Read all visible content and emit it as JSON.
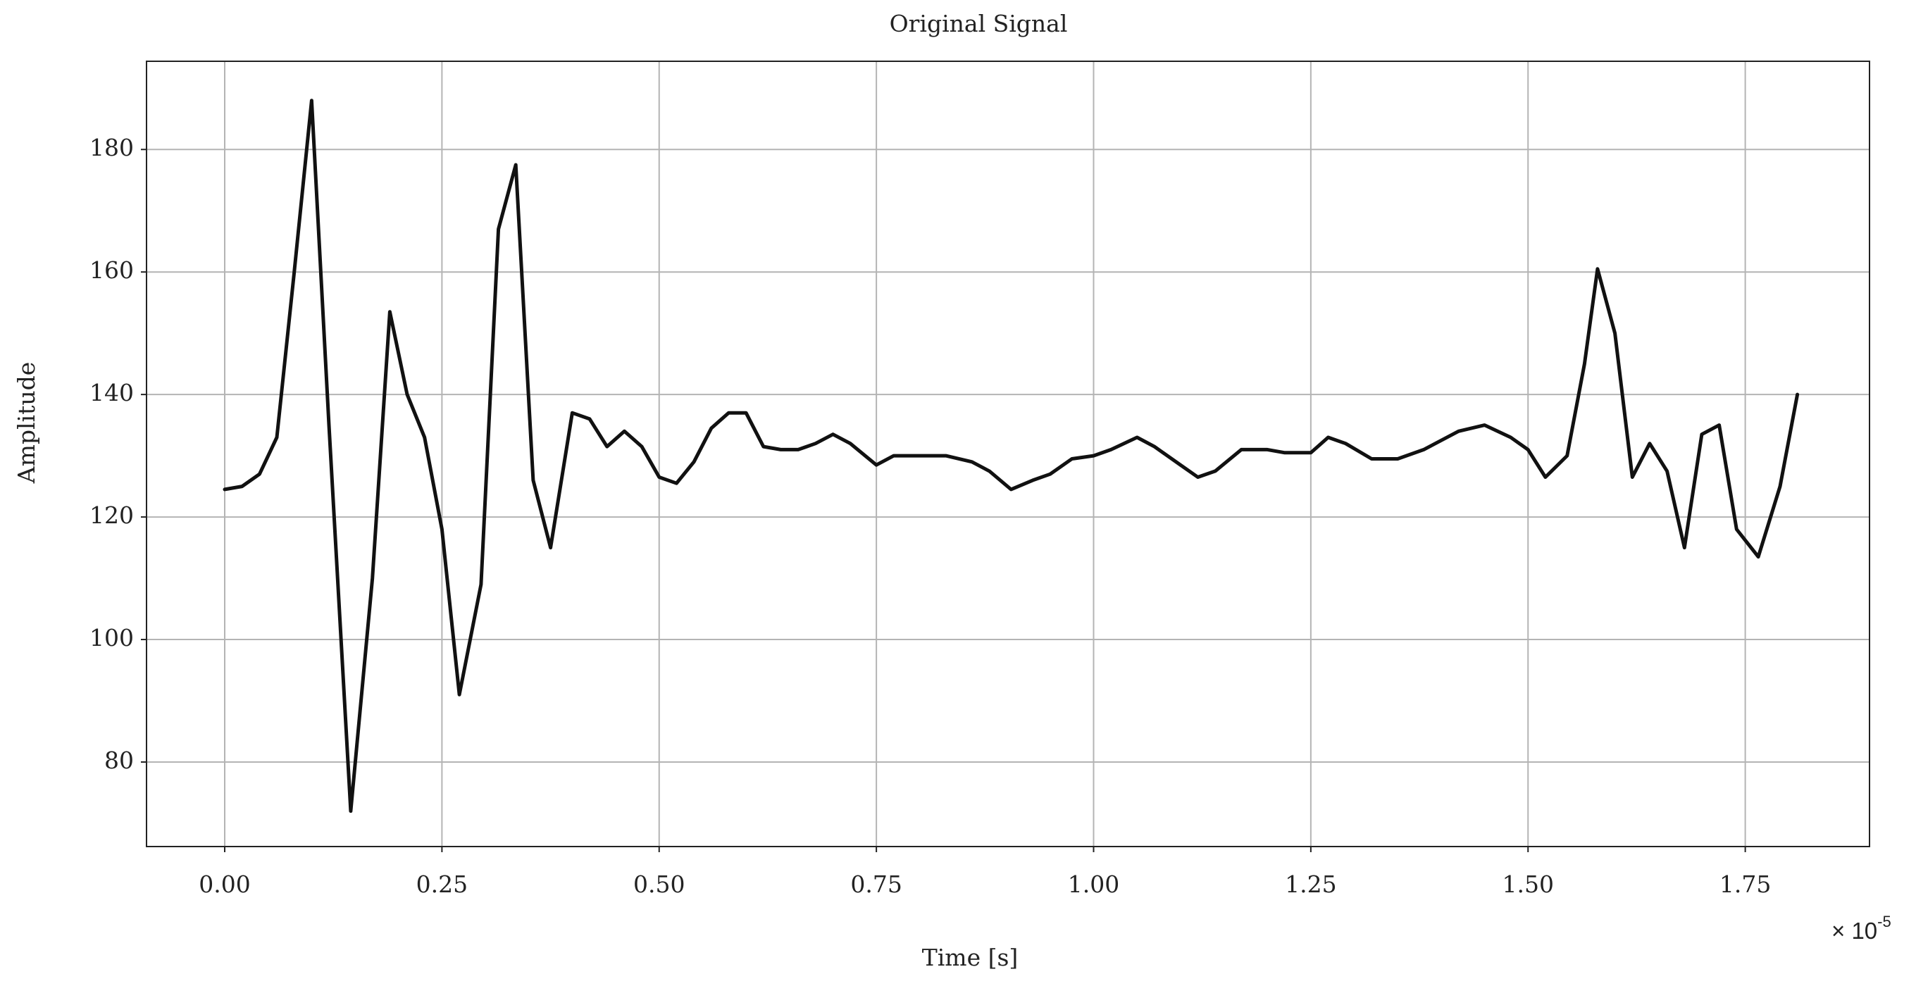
{
  "chart_data": {
    "type": "line",
    "title": "Original Signal",
    "x_label": "Time [s]",
    "y_label": "Amplitude",
    "x_offset": {
      "base": "× 10",
      "exponent": "-5"
    },
    "x": [
      0.0,
      0.02,
      0.04,
      0.06,
      0.08,
      0.1,
      0.12,
      0.145,
      0.17,
      0.19,
      0.21,
      0.23,
      0.25,
      0.27,
      0.295,
      0.315,
      0.335,
      0.355,
      0.375,
      0.4,
      0.42,
      0.44,
      0.46,
      0.48,
      0.5,
      0.52,
      0.54,
      0.56,
      0.58,
      0.6,
      0.62,
      0.64,
      0.66,
      0.68,
      0.7,
      0.72,
      0.75,
      0.77,
      0.8,
      0.83,
      0.86,
      0.88,
      0.905,
      0.93,
      0.95,
      0.975,
      1.0,
      1.02,
      1.05,
      1.07,
      1.1,
      1.12,
      1.14,
      1.17,
      1.2,
      1.22,
      1.25,
      1.27,
      1.29,
      1.32,
      1.35,
      1.38,
      1.42,
      1.45,
      1.48,
      1.5,
      1.52,
      1.545,
      1.565,
      1.58,
      1.6,
      1.62,
      1.64,
      1.66,
      1.68,
      1.7,
      1.72,
      1.74,
      1.765,
      1.79,
      1.81
    ],
    "series": [
      {
        "color": "#111111",
        "values": [
          124.5,
          125,
          127,
          133,
          160,
          188,
          135,
          72,
          110,
          153.5,
          140,
          133,
          118,
          91,
          109,
          167,
          177.5,
          126,
          115,
          137,
          136,
          131.5,
          134,
          131.5,
          126.5,
          125.5,
          129,
          134.5,
          137,
          137,
          131.5,
          131,
          131,
          132,
          133.5,
          132,
          128.5,
          130,
          130,
          130,
          129,
          127.5,
          124.5,
          126,
          127,
          129.5,
          130,
          131,
          133,
          131.5,
          128.5,
          126.5,
          127.5,
          131,
          131,
          130.5,
          130.5,
          133,
          132,
          129.5,
          129.5,
          131,
          134,
          135,
          133,
          131,
          126.5,
          130,
          145,
          160.5,
          150,
          126.5,
          132,
          127.5,
          115,
          133.5,
          135,
          118,
          113.5,
          125,
          140
        ]
      }
    ],
    "xlim": [
      -0.09,
      1.893
    ],
    "ylim": [
      66.2,
      194.4
    ],
    "xticks": [
      {
        "value": 0,
        "label": "0.00"
      },
      {
        "value": 0.25,
        "label": "0.25"
      },
      {
        "value": 0.5,
        "label": "0.50"
      },
      {
        "value": 0.75,
        "label": "0.75"
      },
      {
        "value": 1,
        "label": "1.00"
      },
      {
        "value": 1.25,
        "label": "1.25"
      },
      {
        "value": 1.5,
        "label": "1.50"
      },
      {
        "value": 1.75,
        "label": "1.75"
      }
    ],
    "yticks": [
      80,
      100,
      120,
      140,
      160,
      180
    ],
    "grid": true
  }
}
